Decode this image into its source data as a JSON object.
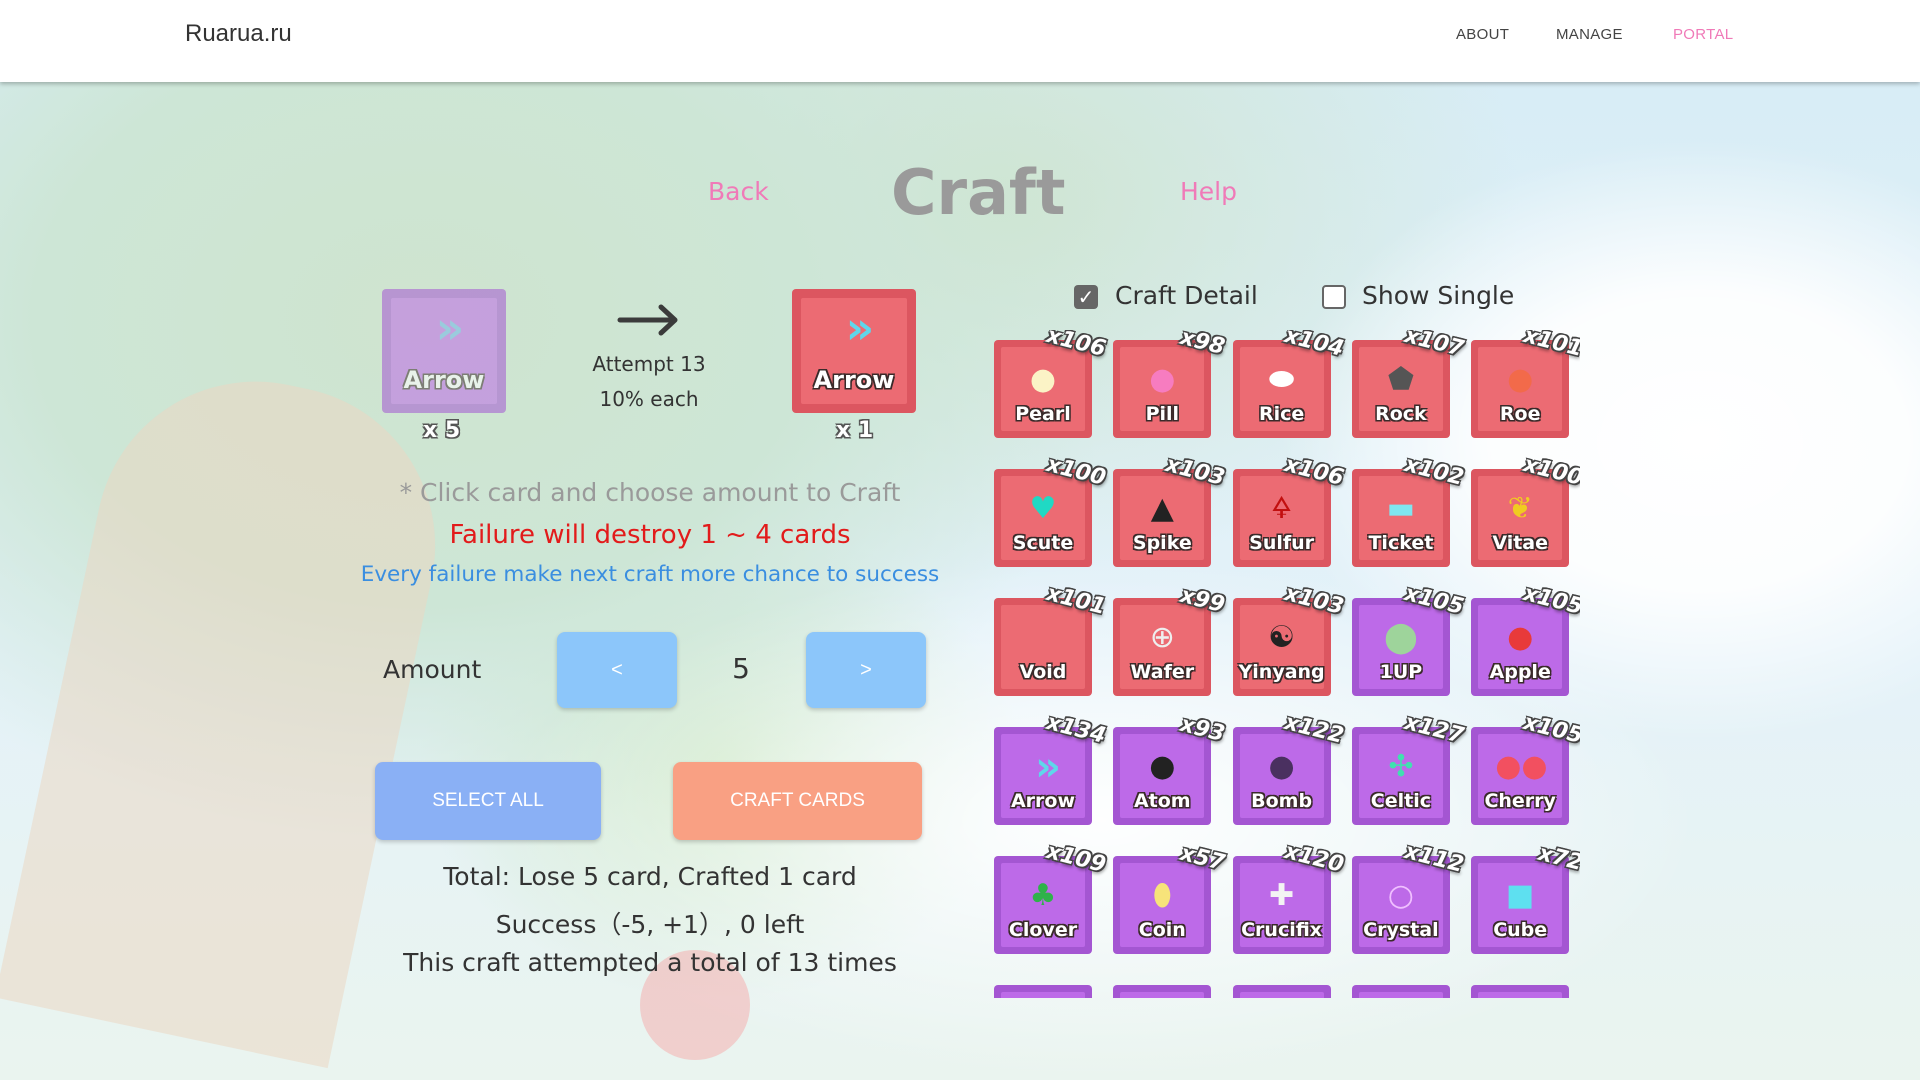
{
  "header": {
    "logo": "Ruarua.ru",
    "nav": [
      {
        "label": "ABOUT"
      },
      {
        "label": "MANAGE"
      },
      {
        "label": "PORTAL",
        "active": true
      }
    ]
  },
  "page": {
    "back": "Back",
    "title": "Craft",
    "help": "Help"
  },
  "craft": {
    "source": {
      "name": "Arrow",
      "qty": "x 5",
      "color": "purple",
      "icon": "double-chevron-icon"
    },
    "arrow_icon": "right-arrow-icon",
    "attempt": "Attempt 13",
    "chance": "10% each",
    "result": {
      "name": "Arrow",
      "qty": "x 1",
      "color": "red",
      "icon": "double-chevron-icon"
    },
    "hint": "* Click card and choose amount to Craft",
    "warning": "Failure will destroy 1 ~ 4 cards",
    "info": "Every failure make next craft more chance to success",
    "amount_label": "Amount",
    "decrease": "<",
    "amount": "5",
    "increase": ">",
    "select_all": "SELECT ALL",
    "craft_cards": "CRAFT CARDS",
    "total": "Total: Lose 5 card, Crafted 1 card",
    "success": "Success（-5, +1）, 0 left",
    "attempts_total": "This craft attempted a total of 13 times"
  },
  "options": {
    "craft_detail": {
      "label": "Craft Detail",
      "checked": true
    },
    "show_single": {
      "label": "Show Single",
      "checked": false
    }
  },
  "colors": {
    "red_card": "#ec6b73",
    "purple_card": "#bd6ae8",
    "link": "#f07ab8",
    "warning": "#e21b1b",
    "info": "#3a8ee0",
    "select_all": "#8ab0f5",
    "craft_cards": "#f9a083",
    "stepper": "#8cc6fa"
  },
  "cards": [
    {
      "name": "Pearl",
      "count": "x106",
      "color": "red",
      "icon": "pearl-icon"
    },
    {
      "name": "Pill",
      "count": "x98",
      "color": "red",
      "icon": "pill-icon"
    },
    {
      "name": "Rice",
      "count": "x104",
      "color": "red",
      "icon": "rice-icon"
    },
    {
      "name": "Rock",
      "count": "x107",
      "color": "red",
      "icon": "rock-icon"
    },
    {
      "name": "Roe",
      "count": "x101",
      "color": "red",
      "icon": "roe-icon"
    },
    {
      "name": "Scute",
      "count": "x100",
      "color": "red",
      "icon": "scute-icon"
    },
    {
      "name": "Spike",
      "count": "x103",
      "color": "red",
      "icon": "spike-icon"
    },
    {
      "name": "Sulfur",
      "count": "x106",
      "color": "red",
      "icon": "sulfur-icon"
    },
    {
      "name": "Ticket",
      "count": "x102",
      "color": "red",
      "icon": "ticket-icon"
    },
    {
      "name": "Vitae",
      "count": "x100",
      "color": "red",
      "icon": "leaf-icon"
    },
    {
      "name": "Void",
      "count": "x101",
      "color": "red",
      "icon": "void-icon"
    },
    {
      "name": "Wafer",
      "count": "x99",
      "color": "red",
      "icon": "wafer-icon"
    },
    {
      "name": "Yinyang",
      "count": "x103",
      "color": "red",
      "icon": "yinyang-icon"
    },
    {
      "name": "1UP",
      "count": "x105",
      "color": "purple",
      "icon": "mushroom-icon"
    },
    {
      "name": "Apple",
      "count": "x105",
      "color": "purple",
      "icon": "apple-icon"
    },
    {
      "name": "Arrow",
      "count": "x134",
      "color": "purple",
      "icon": "double-chevron-icon"
    },
    {
      "name": "Atom",
      "count": "x93",
      "color": "purple",
      "icon": "atom-icon"
    },
    {
      "name": "Bomb",
      "count": "x122",
      "color": "purple",
      "icon": "bomb-icon"
    },
    {
      "name": "Celtic",
      "count": "x127",
      "color": "purple",
      "icon": "celtic-cross-icon"
    },
    {
      "name": "Cherry",
      "count": "x105",
      "color": "purple",
      "icon": "cherry-icon"
    },
    {
      "name": "Clover",
      "count": "x109",
      "color": "purple",
      "icon": "clover-icon"
    },
    {
      "name": "Coin",
      "count": "x57",
      "color": "purple",
      "icon": "coin-icon"
    },
    {
      "name": "Crucifix",
      "count": "x120",
      "color": "purple",
      "icon": "crucifix-icon"
    },
    {
      "name": "Crystal",
      "count": "x112",
      "color": "purple",
      "icon": "crystal-icon"
    },
    {
      "name": "Cube",
      "count": "x72",
      "color": "purple",
      "icon": "cube-icon"
    }
  ]
}
